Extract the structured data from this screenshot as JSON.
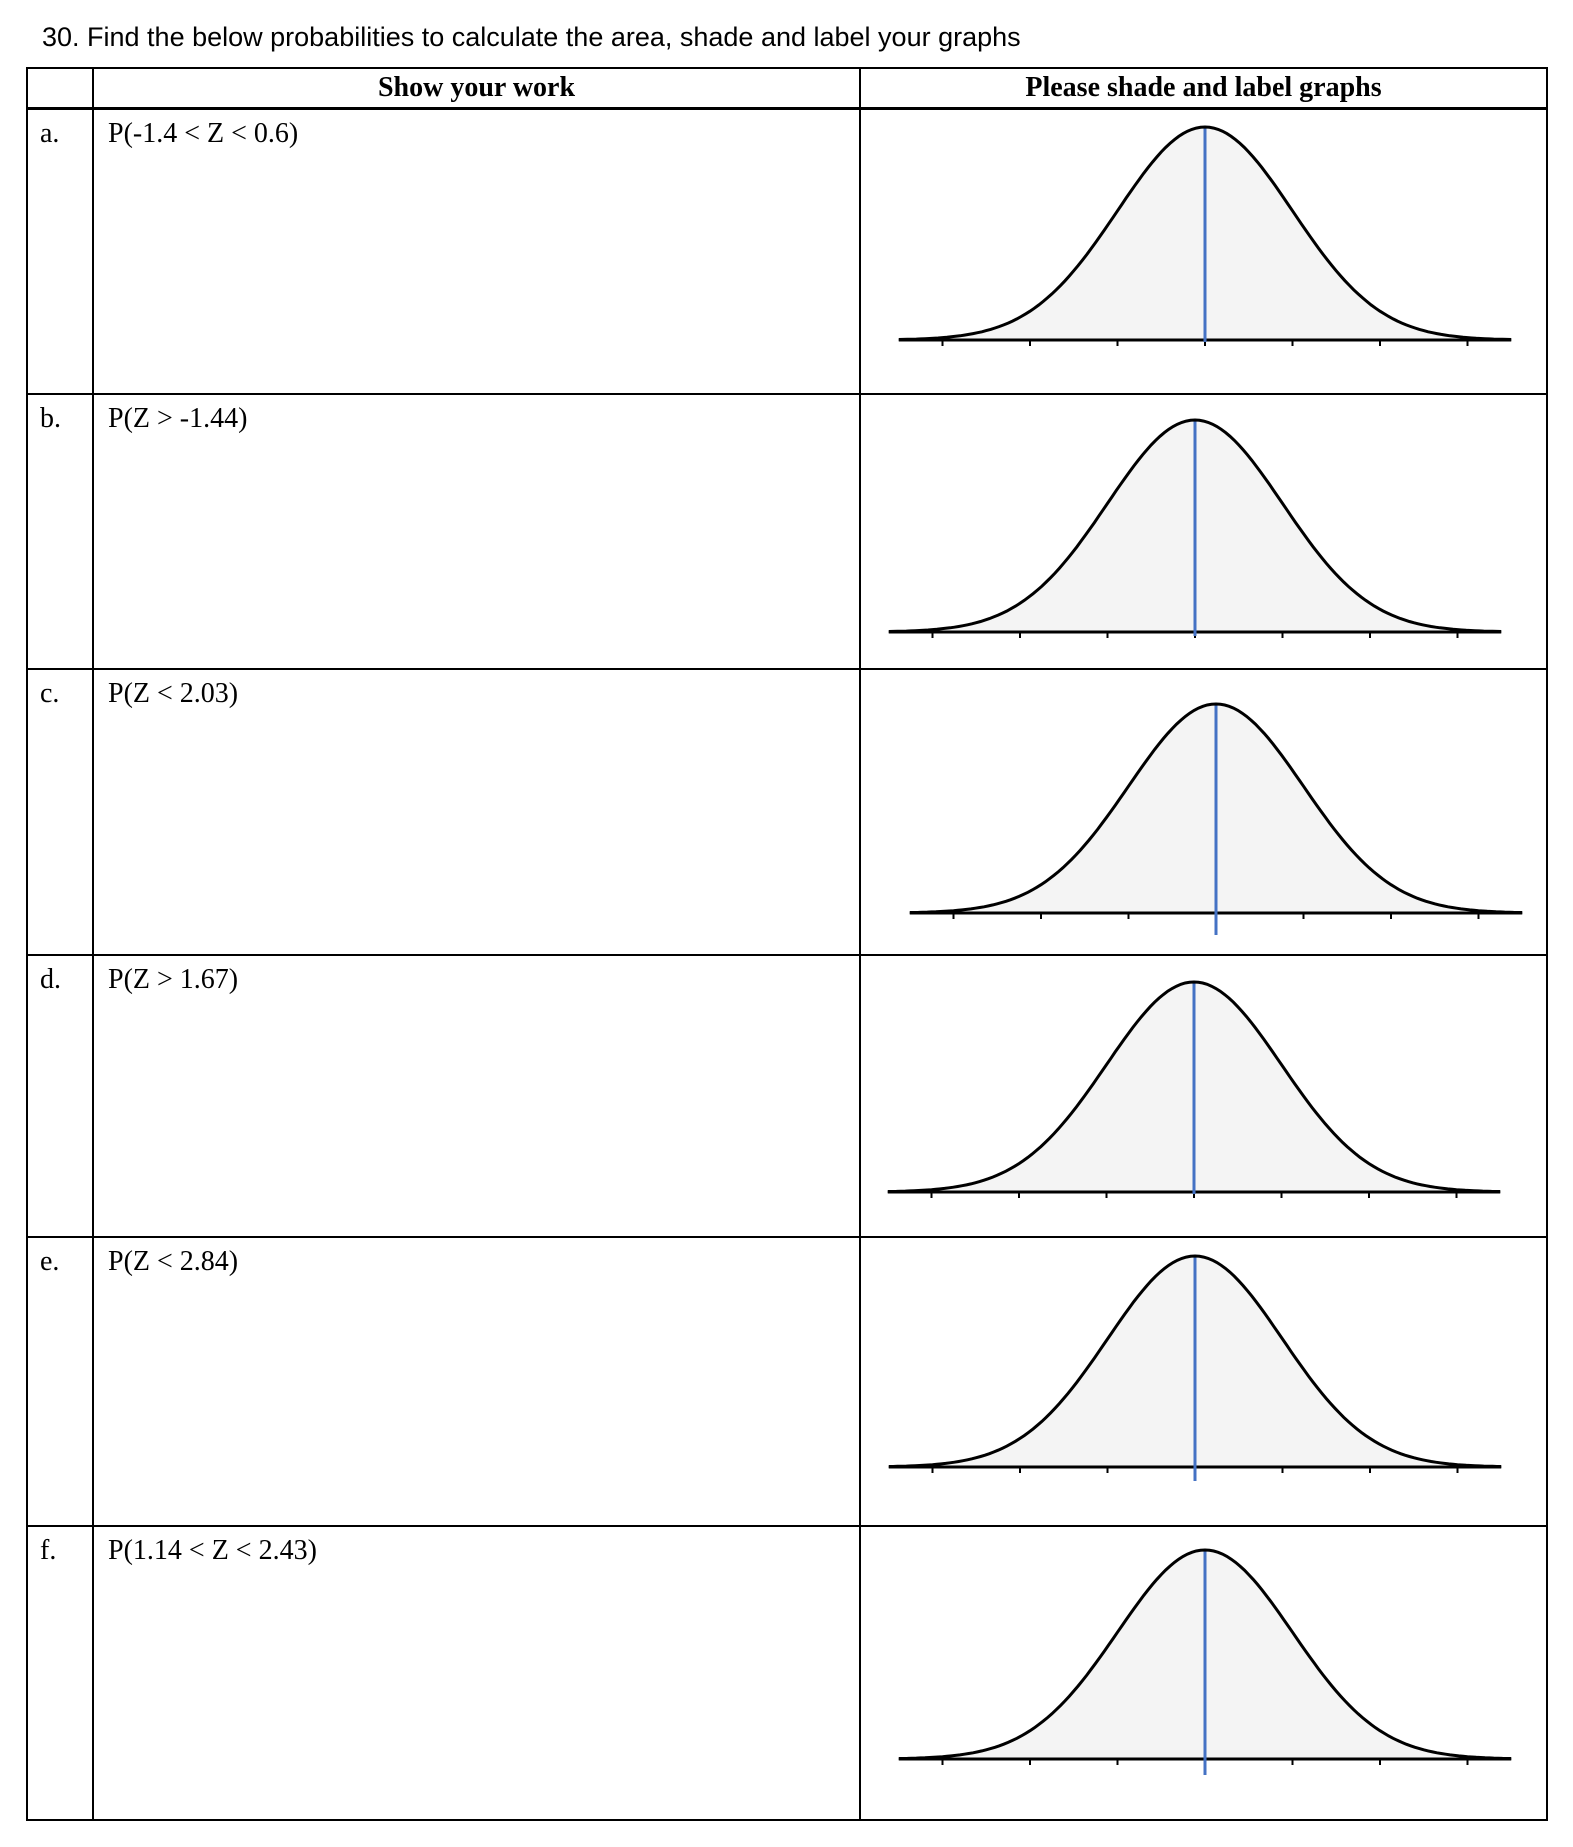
{
  "title": "30. Find the below probabilities to calculate the area, shade and label your graphs",
  "table": {
    "headers": [
      "",
      "Show your work",
      "Please shade and label graphs"
    ],
    "rows": [
      {
        "label": "a.",
        "question": "P(-1.4 < Z < 0.6)"
      },
      {
        "label": "b.",
        "question": "P(Z > -1.44)"
      },
      {
        "label": "c.",
        "question": "P(Z < 2.03)"
      },
      {
        "label": "d.",
        "question": "P(Z > 1.67)"
      },
      {
        "label": "e.",
        "question": "P(Z < 2.84)"
      },
      {
        "label": "f.",
        "question": "P(1.14 < Z < 2.43)"
      }
    ]
  },
  "chart_data": {
    "type": "line",
    "description_of_marks": "standard normal curve",
    "x_ticks": [
      -3,
      -2,
      -1,
      0,
      1,
      2,
      3
    ],
    "xlim": [
      -3.5,
      3.5
    ],
    "mean_line_at": 0,
    "colors": {
      "curve": "#000000",
      "fill": "#f4f4f4",
      "mean_line": "#4472c4"
    }
  }
}
